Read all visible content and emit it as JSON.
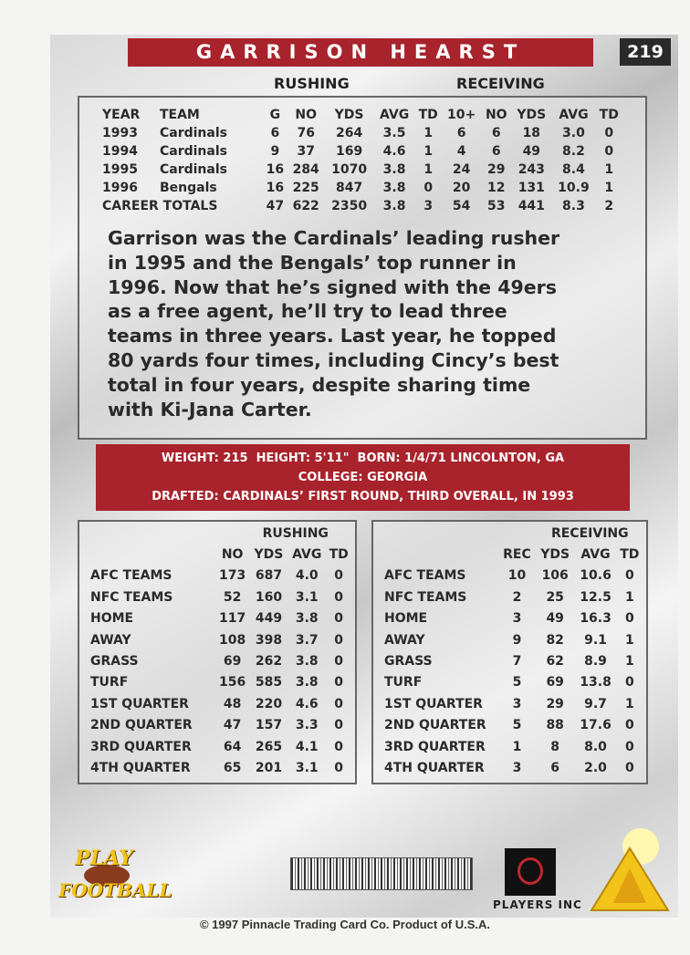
{
  "header": {
    "name": "GARRISON HEARST",
    "number": "219"
  },
  "stats": {
    "groups": [
      "RUSHING",
      "RECEIVING"
    ],
    "columns": [
      "YEAR",
      "TEAM",
      "G",
      "NO",
      "YDS",
      "AVG",
      "TD",
      "10+",
      "NO",
      "YDS",
      "AVG",
      "TD"
    ],
    "rows": [
      [
        "1993",
        "Cardinals",
        "6",
        "76",
        "264",
        "3.5",
        "1",
        "6",
        "6",
        "18",
        "3.0",
        "0"
      ],
      [
        "1994",
        "Cardinals",
        "9",
        "37",
        "169",
        "4.6",
        "1",
        "4",
        "6",
        "49",
        "8.2",
        "0"
      ],
      [
        "1995",
        "Cardinals",
        "16",
        "284",
        "1070",
        "3.8",
        "1",
        "24",
        "29",
        "243",
        "8.4",
        "1"
      ],
      [
        "1996",
        "Bengals",
        "16",
        "225",
        "847",
        "3.8",
        "0",
        "20",
        "12",
        "131",
        "10.9",
        "1"
      ],
      [
        "CAREER TOTALS",
        "47",
        "622",
        "2350",
        "3.8",
        "3",
        "54",
        "53",
        "441",
        "8.3",
        "2"
      ]
    ]
  },
  "bio": {
    "lines": [
      "Garrison was the Cardinals’ leading rusher",
      "in 1995 and the Bengals’ top runner in",
      "1996. Now that he’s signed with the 49ers",
      "as a free agent, he’ll try to lead three",
      "teams in three years. Last year, he topped",
      "80 yards four times, including Cincy’s best",
      "total in four years, despite sharing time",
      "with Ki-Jana Carter."
    ]
  },
  "info": {
    "lines": [
      "WEIGHT: 215  HEIGHT: 5'11\"  BORN: 1/4/71 LINCOLNTON, GA",
      "COLLEGE: GEORGIA",
      "DRAFTED: CARDINALS’ FIRST ROUND, THIRD OVERALL, IN 1993"
    ]
  },
  "splits": [
    {
      "title": "RUSHING",
      "columns": [
        "NO",
        "YDS",
        "AVG",
        "TD"
      ],
      "rows": [
        [
          "AFC TEAMS",
          "173",
          "687",
          "4.0",
          "0"
        ],
        [
          "NFC TEAMS",
          "52",
          "160",
          "3.1",
          "0"
        ],
        [
          "HOME",
          "117",
          "449",
          "3.8",
          "0"
        ],
        [
          "AWAY",
          "108",
          "398",
          "3.7",
          "0"
        ],
        [
          "GRASS",
          "69",
          "262",
          "3.8",
          "0"
        ],
        [
          "TURF",
          "156",
          "585",
          "3.8",
          "0"
        ],
        [
          "1ST QUARTER",
          "48",
          "220",
          "4.6",
          "0"
        ],
        [
          "2ND QUARTER",
          "47",
          "157",
          "3.3",
          "0"
        ],
        [
          "3RD QUARTER",
          "64",
          "265",
          "4.1",
          "0"
        ],
        [
          "4TH QUARTER",
          "65",
          "201",
          "3.1",
          "0"
        ]
      ]
    },
    {
      "title": "RECEIVING",
      "columns": [
        "REC",
        "YDS",
        "AVG",
        "TD"
      ],
      "rows": [
        [
          "AFC TEAMS",
          "10",
          "106",
          "10.6",
          "0"
        ],
        [
          "NFC TEAMS",
          "2",
          "25",
          "12.5",
          "1"
        ],
        [
          "HOME",
          "3",
          "49",
          "16.3",
          "0"
        ],
        [
          "AWAY",
          "9",
          "82",
          "9.1",
          "1"
        ],
        [
          "GRASS",
          "7",
          "62",
          "8.9",
          "1"
        ],
        [
          "TURF",
          "5",
          "69",
          "13.8",
          "0"
        ],
        [
          "1ST QUARTER",
          "3",
          "29",
          "9.7",
          "1"
        ],
        [
          "2ND QUARTER",
          "5",
          "88",
          "17.6",
          "0"
        ],
        [
          "3RD QUARTER",
          "1",
          "8",
          "8.0",
          "0"
        ],
        [
          "4TH QUARTER",
          "3",
          "6",
          "2.0",
          "0"
        ]
      ]
    }
  ],
  "footer": {
    "play_logo": [
      "PLAY",
      "FOOTBALL"
    ],
    "players_logo": "PLAYERS INC",
    "copyright": "© 1997 Pinnacle Trading Card Co. Product of U.S.A."
  }
}
